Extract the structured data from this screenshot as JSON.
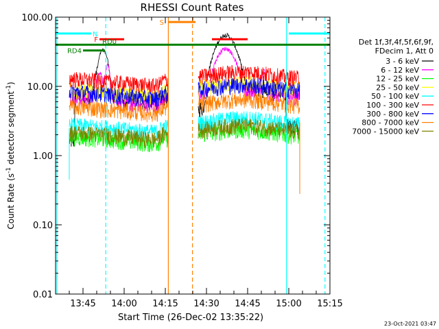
{
  "chart_data": {
    "type": "line",
    "title": "RHESSI Count Rates",
    "xlabel": "Start Time (26-Dec-02 13:35:22)",
    "ylabel_parts": [
      "Count Rate (s",
      "-1",
      " detector segment",
      "-1",
      ")"
    ],
    "yscale": "log",
    "ylim": [
      0.01,
      100
    ],
    "xlim_minutes_since_1335": [
      0,
      100
    ],
    "yticks": [
      {
        "value": 100,
        "label": "100.00"
      },
      {
        "value": 10,
        "label": "10.00"
      },
      {
        "value": 1,
        "label": "1.00"
      },
      {
        "value": 0.1,
        "label": "0.10"
      },
      {
        "value": 0.01,
        "label": "0.01"
      }
    ],
    "xticks": [
      {
        "minute": 10,
        "label": "13:45"
      },
      {
        "minute": 25,
        "label": "14:00"
      },
      {
        "minute": 40,
        "label": "14:15"
      },
      {
        "minute": 55,
        "label": "14:30"
      },
      {
        "minute": 70,
        "label": "14:45"
      },
      {
        "minute": 85,
        "label": "15:00"
      },
      {
        "minute": 100,
        "label": "15:15"
      }
    ],
    "legend_header": [
      "Det 1f,3f,4f,5f,6f,9f,",
      "FDecim 1, Att 0"
    ],
    "legend_placement": "right",
    "series": [
      {
        "name": "3 - 6 keV",
        "color": "#000000",
        "base": 7.5
      },
      {
        "name": "6 - 12 keV",
        "color": "#ff00ff",
        "base": 7.0
      },
      {
        "name": "12 - 25 keV",
        "color": "#00ff00",
        "base": 1.9
      },
      {
        "name": "25 - 50 keV",
        "color": "#ffff00",
        "base": 9.0
      },
      {
        "name": "50 - 100 keV",
        "color": "#00ffff",
        "base": 2.8
      },
      {
        "name": "100 - 300 keV",
        "color": "#ff0000",
        "base": 13.0
      },
      {
        "name": "300 - 800 keV",
        "color": "#0000ff",
        "base": 8.5
      },
      {
        "name": "800 - 7000 keV",
        "color": "#ff8000",
        "base": 5.2
      },
      {
        "name": "7000 - 15000 keV",
        "color": "#808000",
        "base": 2.2
      }
    ],
    "data_intervals": [
      [
        5,
        41
      ],
      [
        52,
        89
      ]
    ],
    "flares": [
      {
        "series": "3 - 6 keV",
        "peak_minute": 62,
        "peak_value": 55
      },
      {
        "series": "6 - 12 keV",
        "peak_minute": 62,
        "peak_value": 35
      },
      {
        "series": "3 - 6 keV",
        "peak_minute": 18,
        "peak_value": 28
      }
    ],
    "annotations": {
      "bars": [
        {
          "label": "N",
          "color": "#00ffff",
          "start": 0,
          "end": 13,
          "value": 58
        },
        {
          "label": "",
          "color": "#00ffff",
          "start": 85,
          "end": 100,
          "value": 58
        },
        {
          "label": "F",
          "color": "#ff0000",
          "start": 16,
          "end": 25,
          "value": 48
        },
        {
          "label": "",
          "color": "#ff0000",
          "start": 57,
          "end": 70,
          "value": 48
        },
        {
          "label": "RD0",
          "color": "#008000",
          "start": 0,
          "end": 100,
          "value": 40
        },
        {
          "label": "RD4",
          "color": "#008000",
          "start": 10,
          "end": 18,
          "value": 33
        },
        {
          "label": "S",
          "color": "#ff8000",
          "start": 41,
          "end": 51,
          "value": 85
        }
      ],
      "vlines": [
        {
          "color": "#00ffff",
          "minute": 0.5,
          "style": "solid"
        },
        {
          "color": "#00ffff",
          "minute": 84.2,
          "style": "solid"
        },
        {
          "color": "#00ffff",
          "minute": 18.3,
          "style": "dashed"
        },
        {
          "color": "#00ffff",
          "minute": 98.2,
          "style": "dashed"
        },
        {
          "color": "#ff8000",
          "minute": 41.1,
          "style": "solid"
        },
        {
          "color": "#ff8000",
          "minute": 49.9,
          "style": "dashed"
        }
      ]
    }
  },
  "footer_date": "23-Oct-2021 03:47"
}
